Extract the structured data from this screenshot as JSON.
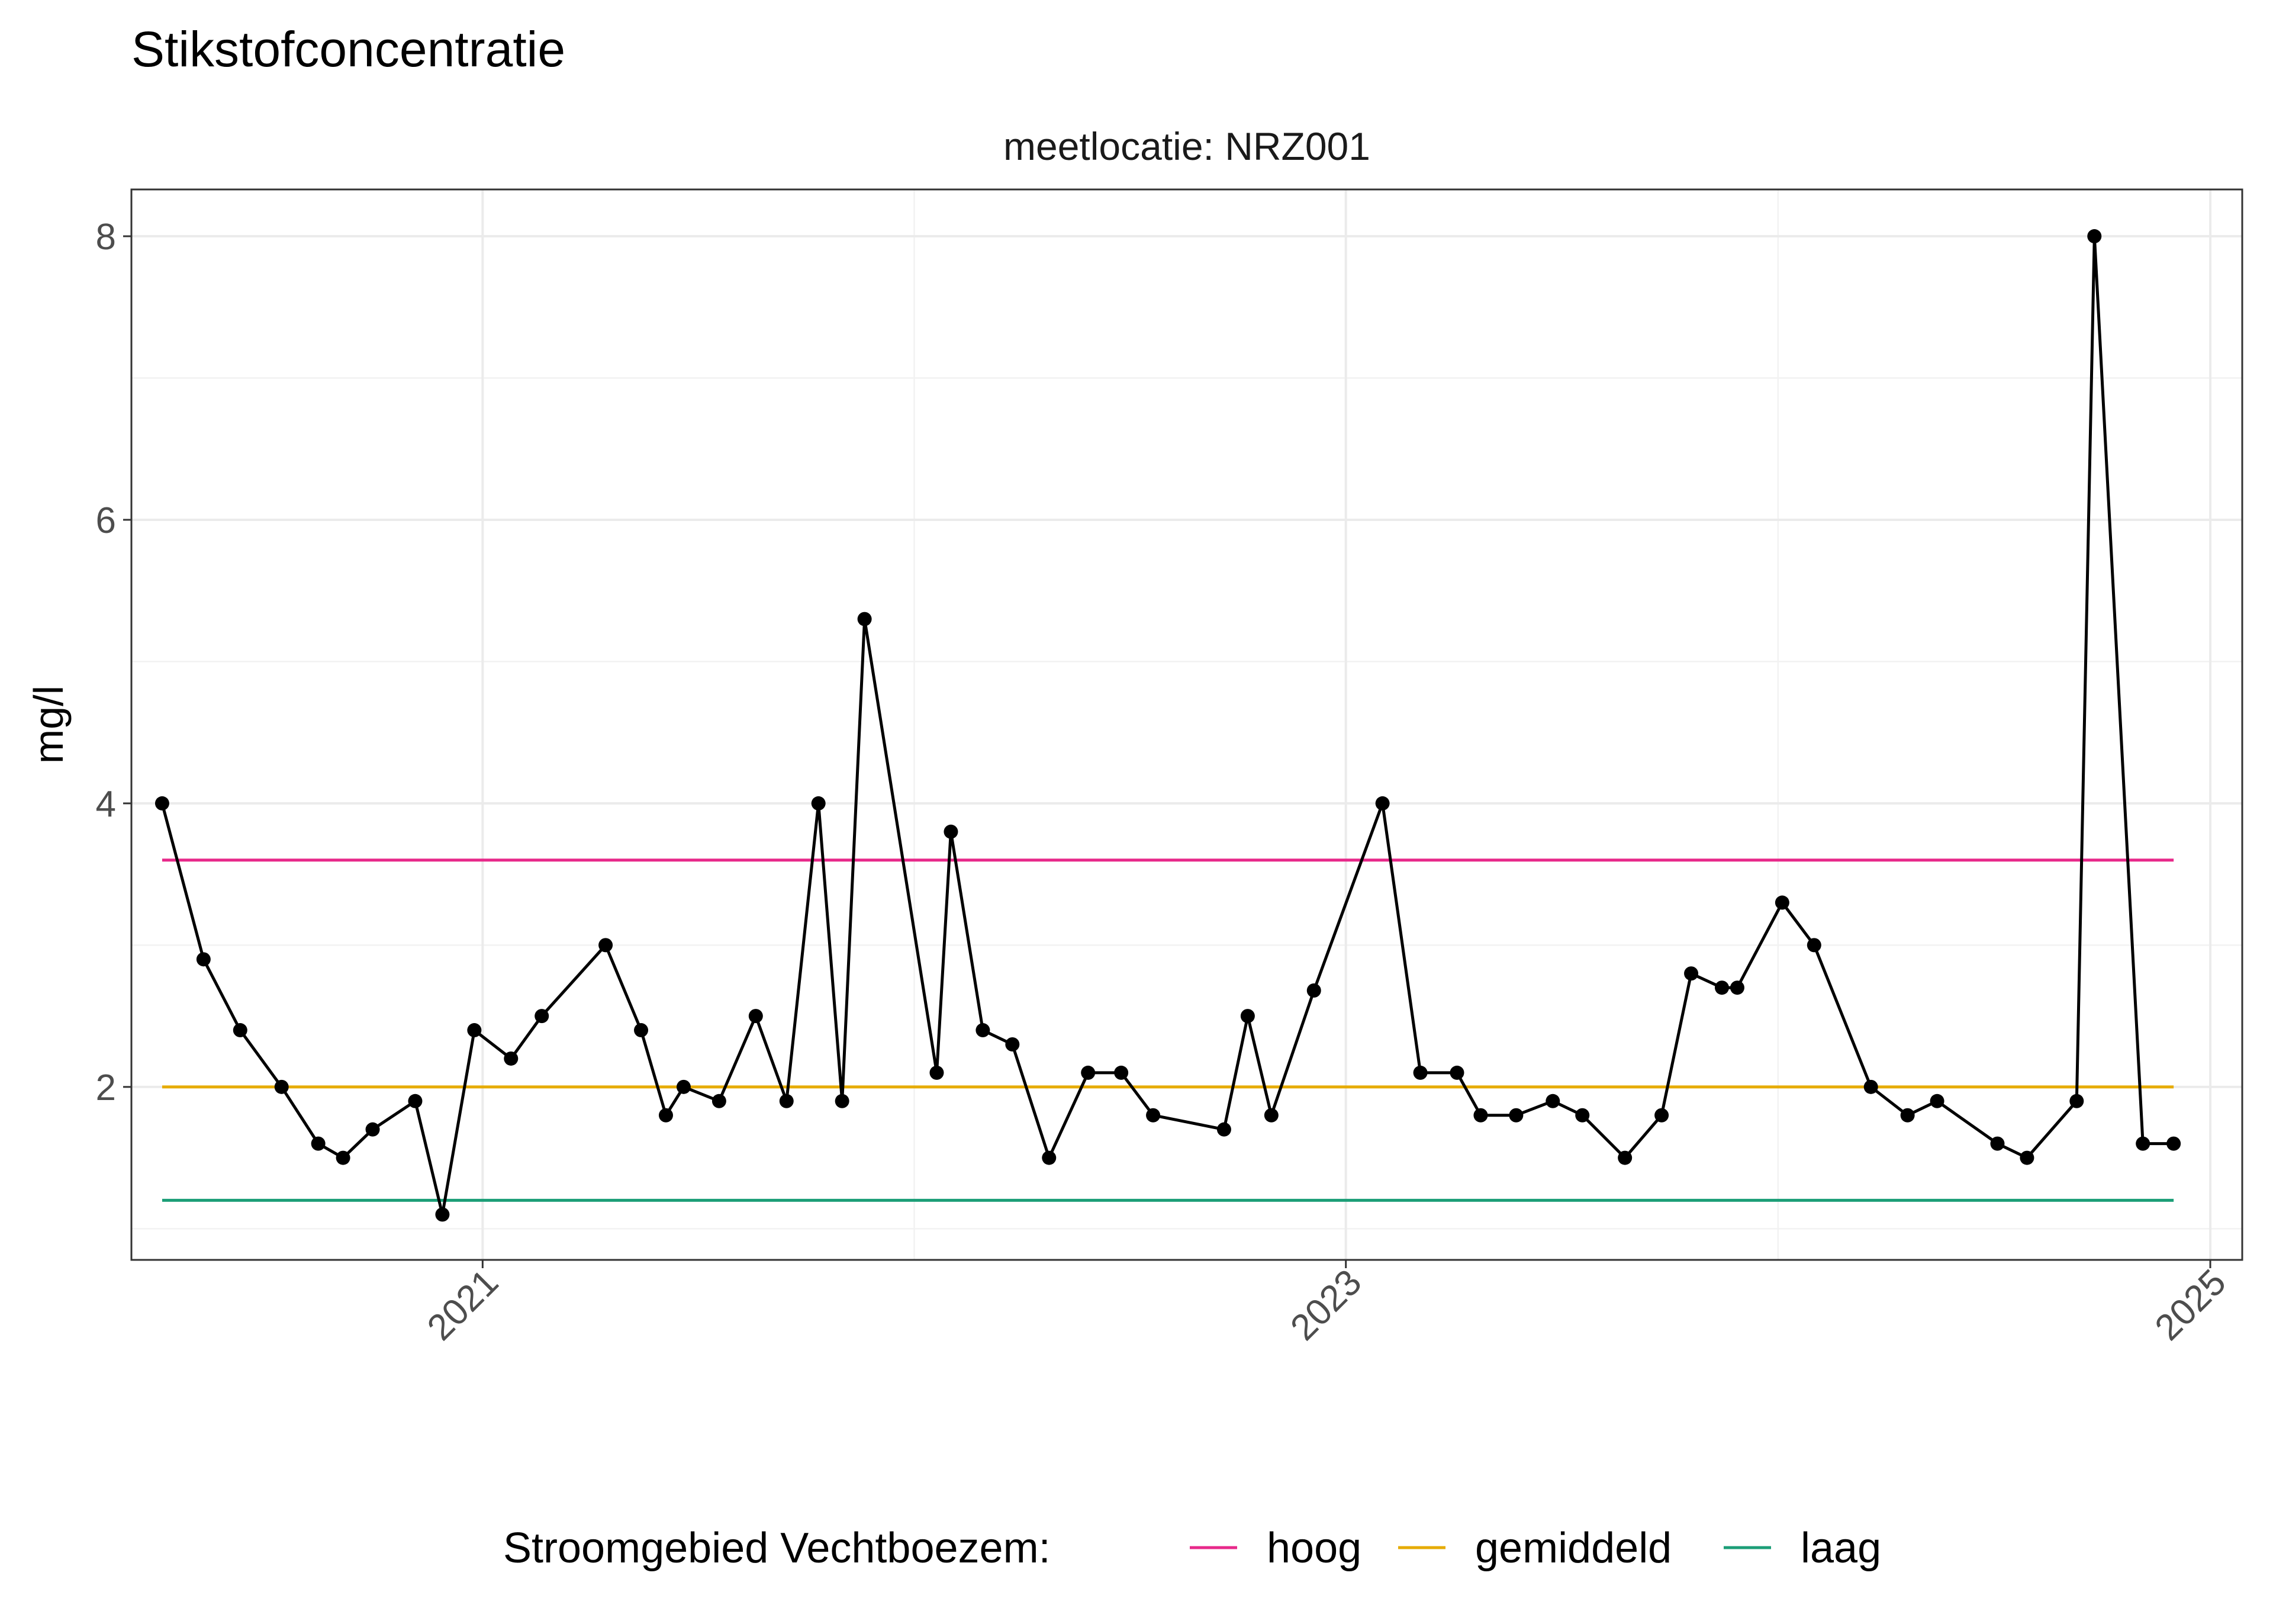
{
  "chart_data": {
    "type": "line",
    "title": "Stikstofconcentratie",
    "facet_label": "meetlocatie: NRZ001",
    "ylabel": "mg/l",
    "xlabel": "",
    "ylim": [
      0.78,
      8.33
    ],
    "xlim": [
      "2020-03-10",
      "2025-01-28"
    ],
    "y_ticks": [
      2,
      4,
      6,
      8
    ],
    "x_ticks": [
      {
        "date": "2021-01-01",
        "label": "2021"
      },
      {
        "date": "2023-01-01",
        "label": "2023"
      },
      {
        "date": "2025-01-01",
        "label": "2025"
      }
    ],
    "grid": true,
    "series": [
      {
        "color": "#000000",
        "x": [
          "2020-04-05",
          "2020-05-10",
          "2020-06-10",
          "2020-07-15",
          "2020-08-15",
          "2020-09-05",
          "2020-09-30",
          "2020-11-05",
          "2020-11-28",
          "2020-12-25",
          "2021-01-25",
          "2021-02-20",
          "2021-04-15",
          "2021-05-15",
          "2021-06-05",
          "2021-06-20",
          "2021-07-20",
          "2021-08-20",
          "2021-09-15",
          "2021-10-12",
          "2021-11-01",
          "2021-11-20",
          "2022-01-20",
          "2022-02-01",
          "2022-02-28",
          "2022-03-25",
          "2022-04-25",
          "2022-05-28",
          "2022-06-25",
          "2022-07-22",
          "2022-09-20",
          "2022-10-10",
          "2022-10-30",
          "2022-12-05",
          "2023-02-01",
          "2023-03-05",
          "2023-04-05",
          "2023-04-25",
          "2023-05-25",
          "2023-06-25",
          "2023-07-20",
          "2023-08-25",
          "2023-09-25",
          "2023-10-20",
          "2023-11-15",
          "2023-11-28",
          "2024-01-05",
          "2024-02-01",
          "2024-03-20",
          "2024-04-20",
          "2024-05-15",
          "2024-07-05",
          "2024-07-30",
          "2024-09-10",
          "2024-09-25",
          "2024-11-05",
          "2024-12-01"
        ],
        "values": [
          4.0,
          2.9,
          2.4,
          2.0,
          1.6,
          1.5,
          1.7,
          1.9,
          1.1,
          2.4,
          2.2,
          2.5,
          3.0,
          2.4,
          1.8,
          2.0,
          1.9,
          2.5,
          1.9,
          4.0,
          1.9,
          5.3,
          2.1,
          3.8,
          2.4,
          2.3,
          1.5,
          2.1,
          2.1,
          1.8,
          1.7,
          2.5,
          1.8,
          2.68,
          4.0,
          2.1,
          2.1,
          1.8,
          1.8,
          1.9,
          1.8,
          1.5,
          1.8,
          2.8,
          2.7,
          2.7,
          3.3,
          3.0,
          2.0,
          1.8,
          1.9,
          1.6,
          1.5,
          1.9,
          8.0,
          1.6,
          1.6
        ]
      }
    ],
    "reference_lines": [
      {
        "name": "hoog",
        "value": 3.6,
        "color": "#e7298a",
        "x": [
          "2020-04-05",
          "2024-12-01"
        ]
      },
      {
        "name": "gemiddeld",
        "value": 2.0,
        "color": "#e6ab02",
        "x": [
          "2020-04-05",
          "2024-12-01"
        ]
      },
      {
        "name": "laag",
        "value": 1.2,
        "color": "#1b9e77",
        "x": [
          "2020-04-05",
          "2024-12-01"
        ]
      }
    ],
    "legend": {
      "title": "Stroomgebied Vechtboezem:",
      "position": "bottom",
      "entries": [
        "hoog",
        "gemiddeld",
        "laag"
      ]
    }
  }
}
